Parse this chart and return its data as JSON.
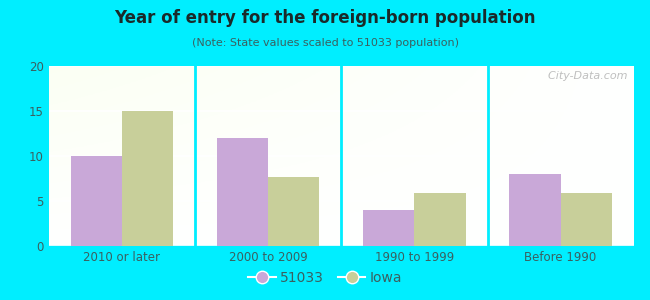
{
  "title": "Year of entry for the foreign-born population",
  "subtitle": "(Note: State values scaled to 51033 population)",
  "categories": [
    "2010 or later",
    "2000 to 2009",
    "1990 to 1999",
    "Before 1990"
  ],
  "series_51033": [
    10,
    12,
    4,
    8
  ],
  "series_iowa": [
    15,
    7.7,
    5.9,
    5.9
  ],
  "color_51033": "#c9a8d8",
  "color_iowa": "#c8cf9a",
  "background_outer": "#00eeff",
  "ylim": [
    0,
    20
  ],
  "yticks": [
    0,
    5,
    10,
    15,
    20
  ],
  "bar_width": 0.35,
  "legend_labels": [
    "51033",
    "Iowa"
  ],
  "watermark": "  City-Data.com",
  "title_color": "#1a2a2a",
  "subtitle_color": "#3a6060",
  "tick_color": "#3a6060"
}
